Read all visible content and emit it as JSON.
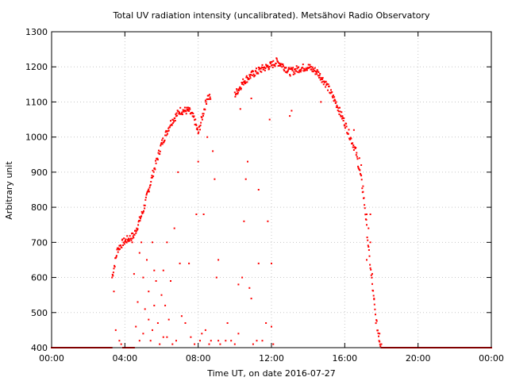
{
  "chart_data": {
    "type": "scatter",
    "title": "Total UV radiation intensity (uncalibrated). Metsähovi Radio Observatory",
    "xlabel": "Time UT, on date 2016-07-27",
    "ylabel": "Arbitrary unit",
    "xlim": [
      0,
      24
    ],
    "ylim": [
      400,
      1300
    ],
    "x_ticks": [
      0,
      4,
      8,
      12,
      16,
      20,
      24
    ],
    "x_tick_labels": [
      "00:00",
      "04:00",
      "08:00",
      "12:00",
      "16:00",
      "20:00",
      "00:00"
    ],
    "y_ticks": [
      400,
      500,
      600,
      700,
      800,
      900,
      1000,
      1100,
      1200,
      1300
    ],
    "y_tick_labels": [
      "400",
      "500",
      "600",
      "700",
      "800",
      "900",
      "1000",
      "1100",
      "1200",
      "1300"
    ],
    "grid": true,
    "marker_color": "#ff0000",
    "baseline": {
      "value": 400,
      "x_ranges": [
        [
          0,
          3.3
        ],
        [
          3.9,
          4.5
        ],
        [
          18.0,
          24
        ]
      ]
    },
    "envelope": [
      [
        3.3,
        600
      ],
      [
        3.6,
        680
      ],
      [
        3.9,
        700
      ],
      [
        4.5,
        720
      ],
      [
        5.0,
        790
      ],
      [
        5.5,
        890
      ],
      [
        6.0,
        980
      ],
      [
        6.5,
        1040
      ],
      [
        7.0,
        1075
      ],
      [
        7.5,
        1075
      ],
      [
        7.8,
        1050
      ],
      [
        8.0,
        1010
      ],
      [
        8.5,
        1115
      ],
      [
        8.7,
        1110
      ],
      [
        10.0,
        1120
      ],
      [
        10.5,
        1160
      ],
      [
        11.0,
        1180
      ],
      [
        11.5,
        1195
      ],
      [
        12.0,
        1205
      ],
      [
        12.3,
        1215
      ],
      [
        12.6,
        1205
      ],
      [
        13.0,
        1185
      ],
      [
        13.5,
        1195
      ],
      [
        14.0,
        1200
      ],
      [
        14.5,
        1185
      ],
      [
        15.0,
        1150
      ],
      [
        15.5,
        1100
      ],
      [
        16.0,
        1040
      ],
      [
        16.3,
        1000
      ],
      [
        16.6,
        960
      ],
      [
        16.9,
        880
      ],
      [
        17.1,
        800
      ],
      [
        17.3,
        680
      ],
      [
        17.5,
        580
      ],
      [
        17.7,
        480
      ],
      [
        17.9,
        420
      ],
      [
        18.0,
        400
      ]
    ],
    "scatter_points": [
      [
        3.4,
        560
      ],
      [
        3.5,
        450
      ],
      [
        3.7,
        420
      ],
      [
        3.8,
        410
      ],
      [
        4.4,
        700
      ],
      [
        4.5,
        610
      ],
      [
        4.6,
        460
      ],
      [
        4.7,
        530
      ],
      [
        4.8,
        420
      ],
      [
        4.8,
        670
      ],
      [
        4.9,
        700
      ],
      [
        5.0,
        440
      ],
      [
        5.0,
        600
      ],
      [
        5.1,
        510
      ],
      [
        5.2,
        650
      ],
      [
        5.3,
        480
      ],
      [
        5.3,
        560
      ],
      [
        5.4,
        420
      ],
      [
        5.5,
        700
      ],
      [
        5.5,
        450
      ],
      [
        5.6,
        620
      ],
      [
        5.6,
        520
      ],
      [
        5.7,
        590
      ],
      [
        5.8,
        470
      ],
      [
        5.9,
        410
      ],
      [
        6.0,
        550
      ],
      [
        6.1,
        620
      ],
      [
        6.1,
        430
      ],
      [
        6.2,
        520
      ],
      [
        6.3,
        430
      ],
      [
        6.3,
        700
      ],
      [
        6.4,
        480
      ],
      [
        6.5,
        590
      ],
      [
        6.6,
        410
      ],
      [
        6.7,
        740
      ],
      [
        6.8,
        420
      ],
      [
        6.9,
        900
      ],
      [
        7.0,
        640
      ],
      [
        7.1,
        490
      ],
      [
        7.3,
        470
      ],
      [
        7.5,
        640
      ],
      [
        7.6,
        430
      ],
      [
        7.8,
        410
      ],
      [
        7.9,
        780
      ],
      [
        8.0,
        930
      ],
      [
        8.1,
        420
      ],
      [
        8.2,
        440
      ],
      [
        8.3,
        780
      ],
      [
        8.4,
        450
      ],
      [
        8.5,
        1000
      ],
      [
        8.6,
        410
      ],
      [
        8.7,
        420
      ],
      [
        8.8,
        960
      ],
      [
        8.9,
        880
      ],
      [
        9.0,
        600
      ],
      [
        9.1,
        420
      ],
      [
        9.1,
        650
      ],
      [
        9.2,
        410
      ],
      [
        9.5,
        420
      ],
      [
        9.6,
        470
      ],
      [
        9.8,
        420
      ],
      [
        10.0,
        410
      ],
      [
        10.2,
        440
      ],
      [
        10.2,
        580
      ],
      [
        10.4,
        600
      ],
      [
        10.5,
        760
      ],
      [
        10.6,
        880
      ],
      [
        10.7,
        930
      ],
      [
        10.8,
        570
      ],
      [
        10.9,
        540
      ],
      [
        11.0,
        410
      ],
      [
        11.2,
        420
      ],
      [
        11.3,
        850
      ],
      [
        11.3,
        640
      ],
      [
        11.5,
        420
      ],
      [
        11.7,
        470
      ],
      [
        11.8,
        760
      ],
      [
        12.0,
        640
      ],
      [
        12.0,
        460
      ],
      [
        12.1,
        410
      ],
      [
        11.9,
        1050
      ],
      [
        10.3,
        1080
      ],
      [
        10.9,
        1110
      ],
      [
        13.0,
        1060
      ],
      [
        13.1,
        1075
      ],
      [
        14.7,
        1100
      ],
      [
        16.5,
        1020
      ],
      [
        16.8,
        940
      ],
      [
        16.9,
        920
      ],
      [
        17.0,
        860
      ],
      [
        17.2,
        780
      ],
      [
        17.3,
        740
      ],
      [
        17.4,
        700
      ],
      [
        17.2,
        650
      ],
      [
        17.5,
        610
      ],
      [
        17.6,
        540
      ],
      [
        17.4,
        780
      ],
      [
        17.9,
        440
      ],
      [
        18.0,
        410
      ]
    ]
  }
}
